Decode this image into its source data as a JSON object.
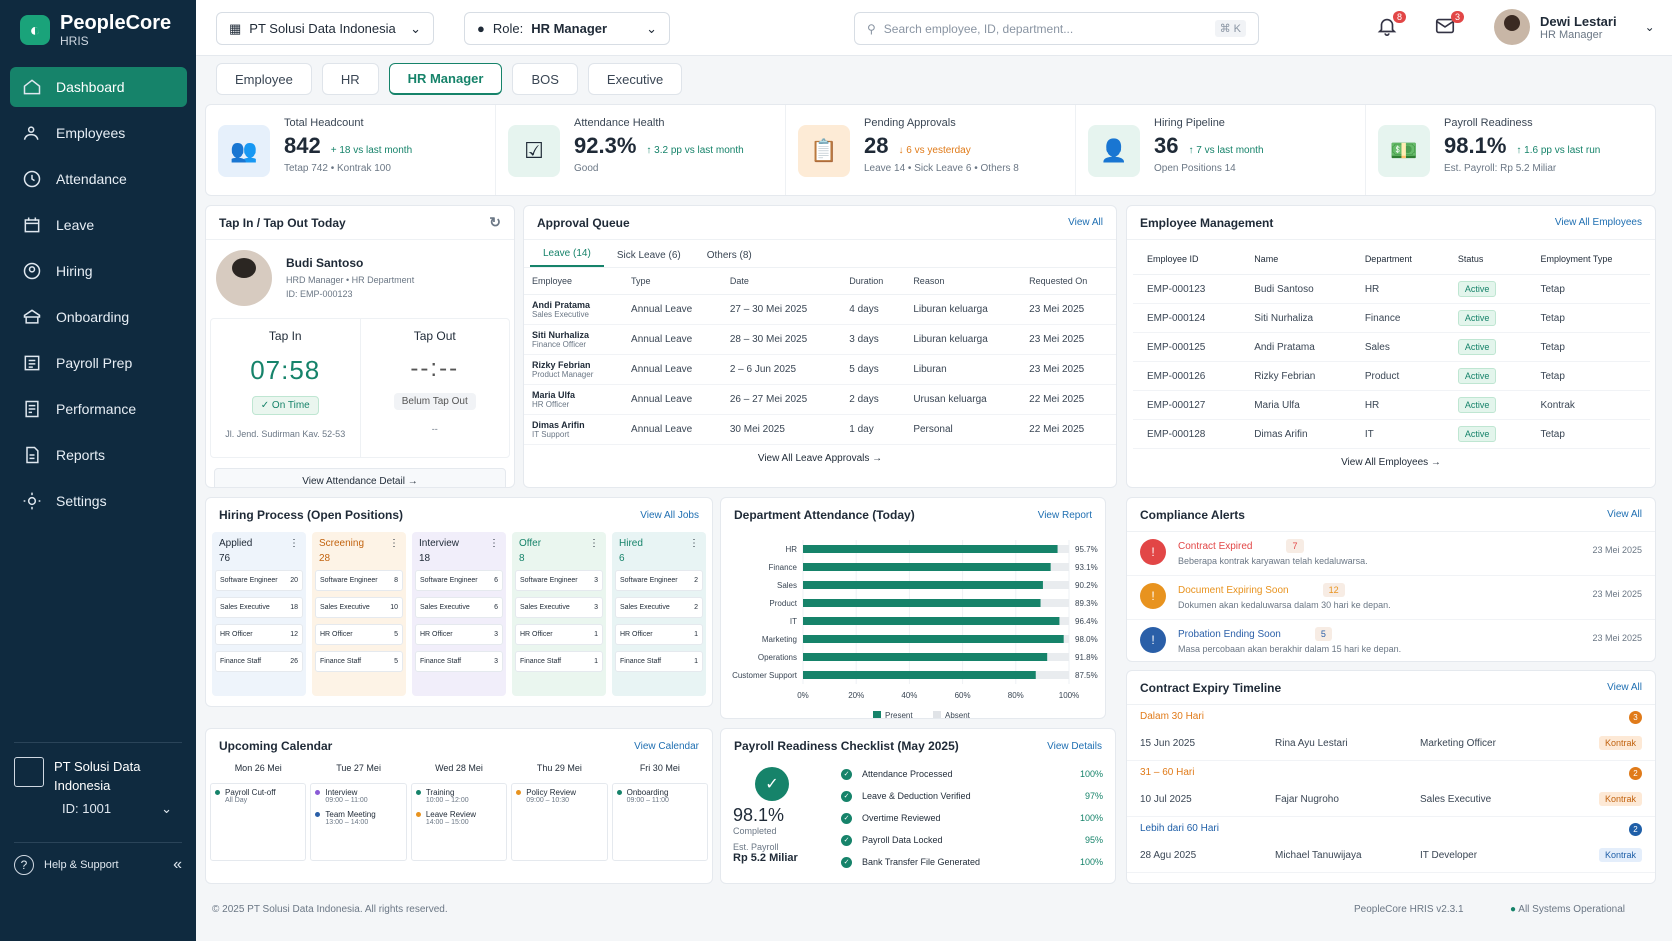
{
  "app": {
    "name": "PeopleCore",
    "sub": "HRIS"
  },
  "nav": [
    "Dashboard",
    "Employees",
    "Attendance",
    "Leave",
    "Hiring",
    "Onboarding",
    "Payroll Prep",
    "Performance",
    "Reports",
    "Settings"
  ],
  "company": {
    "name": "PT Solusi Data Indonesia",
    "id": "ID: 1001"
  },
  "help": "Help & Support",
  "top": {
    "company": "PT Solusi Data Indonesia",
    "role_label": "Role:",
    "role": "HR Manager",
    "search": "Search employee, ID, department...",
    "kbd": "⌘ K",
    "notif": "8",
    "mail": "3",
    "user": "Dewi Lestari",
    "user_role": "HR Manager"
  },
  "tabs": [
    "Employee",
    "HR",
    "HR Manager",
    "BOS",
    "Executive"
  ],
  "kpis": [
    {
      "label": "Total Headcount",
      "value": "842",
      "change": "+ 18 vs last month",
      "sub": "Tetap 742  •  Kontrak 100",
      "color": "#e6f0fb"
    },
    {
      "label": "Attendance Health",
      "value": "92.3%",
      "change": "↑ 3.2 pp vs last month",
      "sub": "Good",
      "color": "#e6f4ef"
    },
    {
      "label": "Pending Approvals",
      "value": "28",
      "change": "↓ 6 vs yesterday",
      "sub": "Leave 14  •  Sick Leave 6  •  Others 8",
      "color": "#fdebd6"
    },
    {
      "label": "Hiring Pipeline",
      "value": "36",
      "change": "↑ 7 vs last month",
      "sub": "Open Positions 14",
      "color": "#e6f4ef"
    },
    {
      "label": "Payroll Readiness",
      "value": "98.1%",
      "change": "↑ 1.6 pp vs last run",
      "sub": "Est. Payroll: Rp 5.2 Miliar",
      "color": "#e6f4ef"
    }
  ],
  "tap": {
    "title": "Tap In / Tap Out Today",
    "name": "Budi Santoso",
    "role": "HRD Manager  •  HR Department",
    "id": "ID: EMP-000123",
    "in_label": "Tap In",
    "in_time": "07:58",
    "in_status": "✓  On Time",
    "out_label": "Tap Out",
    "out_time": "--:--",
    "out_status": "Belum Tap Out",
    "loc": "Jl. Jend. Sudirman Kav. 52-53",
    "loc2": "--",
    "btn": "View Attendance Detail  →"
  },
  "approval": {
    "title": "Approval Queue",
    "link": "View All",
    "tabs": [
      "Leave (14)",
      "Sick Leave (6)",
      "Others (8)"
    ],
    "cols": [
      "Employee",
      "Type",
      "Date",
      "Duration",
      "Reason",
      "Requested On"
    ],
    "rows": [
      [
        "Andi Pratama",
        "Sales Executive",
        "Annual Leave",
        "27 – 30 Mei 2025",
        "4 days",
        "Liburan keluarga",
        "23 Mei 2025"
      ],
      [
        "Siti Nurhaliza",
        "Finance Officer",
        "Annual Leave",
        "28 – 30 Mei 2025",
        "3 days",
        "Liburan keluarga",
        "23 Mei 2025"
      ],
      [
        "Rizky Febrian",
        "Product Manager",
        "Annual Leave",
        "2 – 6 Jun 2025",
        "5 days",
        "Liburan",
        "23 Mei 2025"
      ],
      [
        "Maria Ulfa",
        "HR Officer",
        "Annual Leave",
        "26 – 27 Mei 2025",
        "2 days",
        "Urusan keluarga",
        "22 Mei 2025"
      ],
      [
        "Dimas Arifin",
        "IT Support",
        "Annual Leave",
        "30 Mei 2025",
        "1 day",
        "Personal",
        "22 Mei 2025"
      ]
    ],
    "footer": "View All Leave Approvals  →"
  },
  "emp": {
    "title": "Employee Management",
    "link": "View All Employees",
    "cols": [
      "Employee ID",
      "Name",
      "Department",
      "Status",
      "Employment Type"
    ],
    "rows": [
      [
        "EMP-000123",
        "Budi Santoso",
        "HR",
        "Active",
        "Tetap"
      ],
      [
        "EMP-000124",
        "Siti Nurhaliza",
        "Finance",
        "Active",
        "Tetap"
      ],
      [
        "EMP-000125",
        "Andi Pratama",
        "Sales",
        "Active",
        "Tetap"
      ],
      [
        "EMP-000126",
        "Rizky Febrian",
        "Product",
        "Active",
        "Tetap"
      ],
      [
        "EMP-000127",
        "Maria Ulfa",
        "HR",
        "Active",
        "Kontrak"
      ],
      [
        "EMP-000128",
        "Dimas Arifin",
        "IT",
        "Active",
        "Tetap"
      ]
    ],
    "footer": "View All Employees  →"
  },
  "hiring": {
    "title": "Hiring Process (Open Positions)",
    "link": "View All Jobs",
    "cols": [
      {
        "name": "Applied",
        "count": "76",
        "bg": "#eef4fb",
        "fg": "#1f2a37",
        "items": [
          [
            "Software Engineer",
            "20"
          ],
          [
            "Sales Executive",
            "18"
          ],
          [
            "HR Officer",
            "12"
          ],
          [
            "Finance Staff",
            "26"
          ]
        ]
      },
      {
        "name": "Screening",
        "count": "28",
        "bg": "#fdf3e6",
        "fg": "#c2630f",
        "items": [
          [
            "Software Engineer",
            "8"
          ],
          [
            "Sales Executive",
            "10"
          ],
          [
            "HR Officer",
            "5"
          ],
          [
            "Finance Staff",
            "5"
          ]
        ]
      },
      {
        "name": "Interview",
        "count": "18",
        "bg": "#f1eefa",
        "fg": "#1f2a37",
        "items": [
          [
            "Software Engineer",
            "6"
          ],
          [
            "Sales Executive",
            "6"
          ],
          [
            "HR Officer",
            "3"
          ],
          [
            "Finance Staff",
            "3"
          ]
        ]
      },
      {
        "name": "Offer",
        "count": "8",
        "bg": "#eaf6ef",
        "fg": "#16836a",
        "items": [
          [
            "Software Engineer",
            "3"
          ],
          [
            "Sales Executive",
            "3"
          ],
          [
            "HR Officer",
            "1"
          ],
          [
            "Finance Staff",
            "1"
          ]
        ]
      },
      {
        "name": "Hired",
        "count": "6",
        "bg": "#e8f4f4",
        "fg": "#16836a",
        "items": [
          [
            "Software Engineer",
            "2"
          ],
          [
            "Sales Executive",
            "2"
          ],
          [
            "HR Officer",
            "1"
          ],
          [
            "Finance Staff",
            "1"
          ]
        ]
      }
    ]
  },
  "chart_data": {
    "type": "bar",
    "title": "Department Attendance (Today)",
    "categories": [
      "HR",
      "Finance",
      "Sales",
      "Product",
      "IT",
      "Marketing",
      "Operations",
      "Customer Support"
    ],
    "series": [
      {
        "name": "Present",
        "values": [
          95.7,
          93.1,
          90.2,
          89.3,
          96.4,
          98.0,
          91.8,
          87.5
        ]
      }
    ],
    "labels": [
      "95.7%",
      "93.1%",
      "90.2%",
      "89.3%",
      "96.4%",
      "98.0%",
      "91.8%",
      "87.5%"
    ],
    "xticks": [
      "0%",
      "20%",
      "40%",
      "60%",
      "80%",
      "100%"
    ],
    "xlim": [
      0,
      100
    ],
    "legend": [
      "Present",
      "Absent"
    ],
    "link": "View Report"
  },
  "compliance": {
    "title": "Compliance Alerts",
    "link": "View All",
    "items": [
      {
        "t": "Contract Expired",
        "n": "7",
        "d": "Beberapa kontrak karyawan telah kedaluwarsa.",
        "date": "23 Mei 2025",
        "c": "#e24646"
      },
      {
        "t": "Document Expiring Soon",
        "n": "12",
        "d": "Dokumen akan kedaluwarsa dalam 30 hari ke depan.",
        "date": "23 Mei 2025",
        "c": "#e8931f"
      },
      {
        "t": "Probation Ending Soon",
        "n": "5",
        "d": "Masa percobaan akan berakhir dalam 15 hari ke depan.",
        "date": "23 Mei 2025",
        "c": "#2a5fa8"
      }
    ]
  },
  "contract": {
    "title": "Contract Expiry Timeline",
    "link": "View All",
    "groups": [
      {
        "label": "Dalam 30 Hari",
        "n": "3",
        "c": "#e07b1a",
        "date": "15 Jun 2025",
        "name": "Rina Ayu Lestari",
        "pos": "Marketing Officer",
        "tag": "Kontrak"
      },
      {
        "label": "31 – 60 Hari",
        "n": "2",
        "c": "#e07b1a",
        "date": "10 Jul 2025",
        "name": "Fajar Nugroho",
        "pos": "Sales Executive",
        "tag": "Kontrak"
      },
      {
        "label": "Lebih dari 60 Hari",
        "n": "2",
        "c": "#1f5fa8",
        "date": "28 Agu 2025",
        "name": "Michael Tanuwijaya",
        "pos": "IT Developer",
        "tag": "Kontrak"
      }
    ]
  },
  "calendar": {
    "title": "Upcoming Calendar",
    "link": "View Calendar",
    "days": [
      {
        "d": "Mon 26 Mei",
        "ev": [
          [
            "Payroll Cut-off",
            "All Day",
            "#16836a"
          ]
        ]
      },
      {
        "d": "Tue 27 Mei",
        "ev": [
          [
            "Interview",
            "09:00 – 11:00",
            "#8a5bd6"
          ],
          [
            "Team Meeting",
            "13:00 – 14:00",
            "#2a5fa8"
          ]
        ]
      },
      {
        "d": "Wed 28 Mei",
        "ev": [
          [
            "Training",
            "10:00 – 12:00",
            "#16836a"
          ],
          [
            "Leave Review",
            "14:00 – 15:00",
            "#e8931f"
          ]
        ]
      },
      {
        "d": "Thu 29 Mei",
        "ev": [
          [
            "Policy Review",
            "09:00 – 10:30",
            "#e8931f"
          ]
        ]
      },
      {
        "d": "Fri 30 Mei",
        "ev": [
          [
            "Onboarding",
            "09:00 – 11:00",
            "#16836a"
          ]
        ]
      }
    ]
  },
  "payroll": {
    "title": "Payroll Readiness Checklist (May 2025)",
    "link": "View Details",
    "pct": "98.1%",
    "done": "Completed",
    "est_label": "Est. Payroll",
    "est": "Rp 5.2 Miliar",
    "items": [
      [
        "Attendance Processed",
        "100%"
      ],
      [
        "Leave & Deduction Verified",
        "97%"
      ],
      [
        "Overtime Reviewed",
        "100%"
      ],
      [
        "Payroll Data Locked",
        "95%"
      ],
      [
        "Bank Transfer File Generated",
        "100%"
      ]
    ]
  },
  "footer": {
    "copy": "© 2025 PT Solusi Data Indonesia. All rights reserved.",
    "ver": "PeopleCore HRIS v2.3.1",
    "status": "All Systems Operational"
  }
}
